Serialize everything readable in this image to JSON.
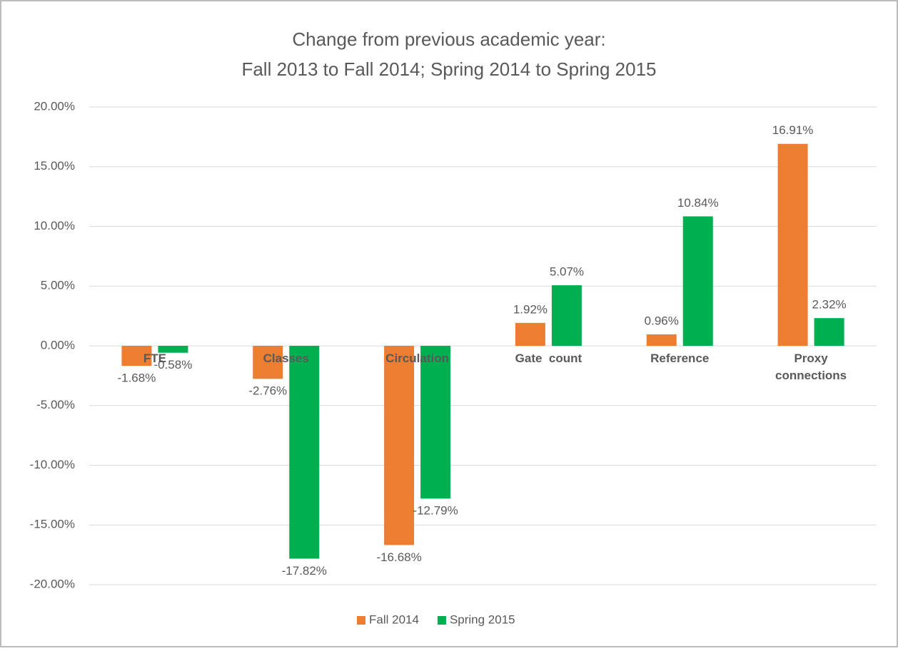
{
  "chart_data": {
    "type": "bar",
    "title": [
      "Change from previous academic year:",
      "Fall 2013 to Fall 2014; Spring 2014 to Spring 2015"
    ],
    "categories": [
      "FTE",
      "Classes",
      "Circulation",
      "Gate  count",
      "Reference",
      "Proxy connections"
    ],
    "series": [
      {
        "name": "Fall 2014",
        "color": "#ed7d31",
        "values": [
          -1.68,
          -2.76,
          -16.68,
          1.92,
          0.96,
          16.91
        ],
        "value_labels": [
          "-1.68%",
          "-2.76%",
          "-16.68%",
          "1.92%",
          "0.96%",
          "16.91%"
        ]
      },
      {
        "name": "Spring 2015",
        "color": "#00b050",
        "values": [
          -0.58,
          -17.82,
          -12.79,
          5.07,
          10.84,
          2.32
        ],
        "value_labels": [
          "-0.58%",
          "-17.82%",
          "-12.79%",
          "5.07%",
          "10.84%",
          "2.32%"
        ]
      }
    ],
    "ylim": [
      -20,
      20
    ],
    "yticks": [
      {
        "value": -20,
        "label": "-20.00%"
      },
      {
        "value": -15,
        "label": "-15.00%"
      },
      {
        "value": -10,
        "label": "-10.00%"
      },
      {
        "value": -5,
        "label": "-5.00%"
      },
      {
        "value": 0,
        "label": "0.00%"
      },
      {
        "value": 5,
        "label": "5.00%"
      },
      {
        "value": 10,
        "label": "10.00%"
      },
      {
        "value": 15,
        "label": "15.00%"
      },
      {
        "value": 20,
        "label": "20.00%"
      }
    ],
    "grid": true,
    "legend": "bottom"
  }
}
